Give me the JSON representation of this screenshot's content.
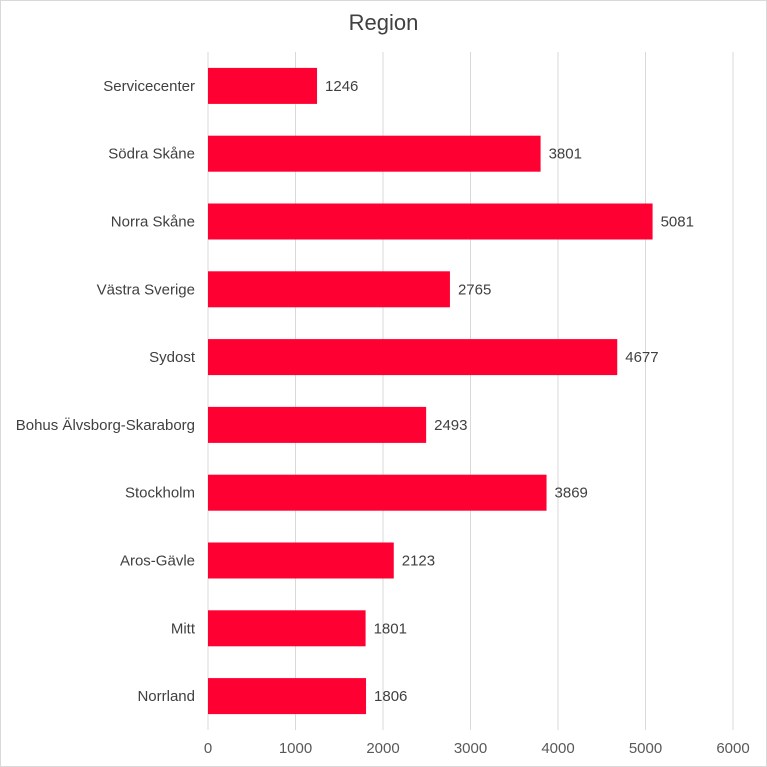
{
  "chart_data": {
    "type": "bar",
    "orientation": "horizontal",
    "title": "Region",
    "categories": [
      "Servicecenter",
      "Södra Skåne",
      "Norra Skåne",
      "Västra Sverige",
      "Sydost",
      "Bohus Älvsborg-Skaraborg",
      "Stockholm",
      "Aros-Gävle",
      "Mitt",
      "Norrland"
    ],
    "values": [
      1246,
      3801,
      5081,
      2765,
      4677,
      2493,
      3869,
      2123,
      1801,
      1806
    ],
    "xlim": [
      0,
      6000
    ],
    "x_ticks": [
      "0",
      "1000",
      "2000",
      "3000",
      "4000",
      "5000",
      "6000"
    ],
    "grid": "vertical",
    "bar_color": "#ff0033",
    "data_labels": true
  }
}
